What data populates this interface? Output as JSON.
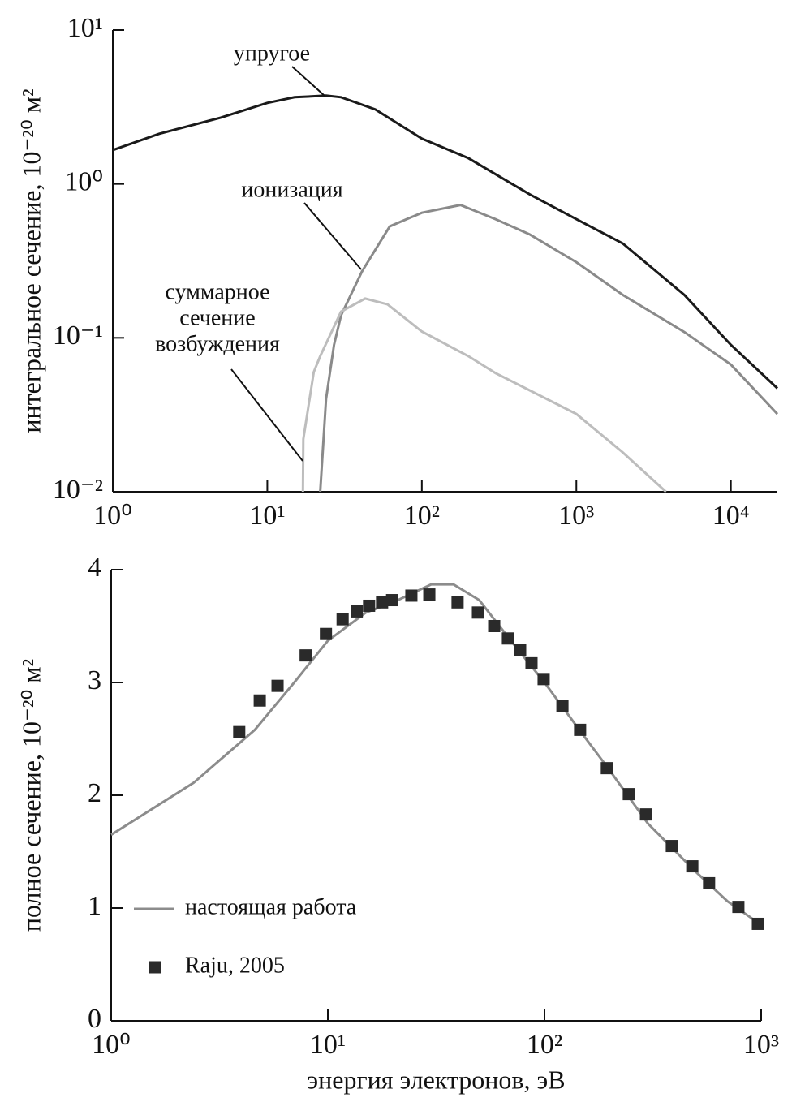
{
  "chart_data": [
    {
      "type": "line",
      "xlog": true,
      "ylog": true,
      "ylabel": "интегральное сечение, 10⁻²⁰ м²",
      "xlim": [
        1,
        20000
      ],
      "ylim": [
        0.01,
        10
      ],
      "xticks": [
        {
          "value": 1,
          "label": "10⁰"
        },
        {
          "value": 10,
          "label": "10¹"
        },
        {
          "value": 100,
          "label": "10²"
        },
        {
          "value": 1000,
          "label": "10³"
        },
        {
          "value": 10000,
          "label": "10⁴"
        }
      ],
      "yticks": [
        {
          "value": 0.01,
          "label": "10⁻²"
        },
        {
          "value": 0.1,
          "label": "10⁻¹"
        },
        {
          "value": 1,
          "label": "10⁰"
        },
        {
          "value": 10,
          "label": "10¹"
        }
      ],
      "annotations": [
        [
          "упругое"
        ],
        [
          "ионизация"
        ],
        [
          "суммарное",
          "сечение",
          "возбуждения"
        ]
      ],
      "series": [
        {
          "color": "#1a1a1a",
          "style": "line",
          "x": [
            1,
            2,
            5,
            10,
            15,
            24,
            30,
            50,
            100,
            200,
            500,
            1000,
            2000,
            5000,
            10000,
            20000
          ],
          "values": [
            1.66,
            2.12,
            2.7,
            3.36,
            3.66,
            3.75,
            3.66,
            3.05,
            1.97,
            1.47,
            0.855,
            0.59,
            0.41,
            0.19,
            0.09,
            0.047
          ]
        },
        {
          "color": "#8a8a8a",
          "style": "line",
          "x": [
            22,
            24,
            27,
            30,
            41,
            62,
            100,
            178,
            300,
            500,
            1000,
            2000,
            5000,
            10000,
            20000
          ],
          "values": [
            0.01,
            0.04,
            0.09,
            0.14,
            0.27,
            0.53,
            0.65,
            0.73,
            0.59,
            0.47,
            0.31,
            0.19,
            0.109,
            0.067,
            0.032
          ]
        },
        {
          "color": "#bdbdbd",
          "style": "line",
          "x": [
            17,
            17.1,
            20,
            22,
            30,
            43,
            60,
            100,
            200,
            300,
            1000,
            2000,
            3800
          ],
          "values": [
            0.01,
            0.022,
            0.06,
            0.076,
            0.148,
            0.18,
            0.165,
            0.11,
            0.076,
            0.059,
            0.032,
            0.018,
            0.01
          ]
        }
      ]
    },
    {
      "type": "line",
      "xlog": true,
      "ylog": false,
      "ylabel": "полное сечение, 10⁻²⁰ м²",
      "xlabel": "энергия электронов, эВ",
      "xlim": [
        1,
        1000
      ],
      "ylim": [
        0,
        4
      ],
      "xticks": [
        {
          "value": 1,
          "label": "10⁰"
        },
        {
          "value": 10,
          "label": "10¹"
        },
        {
          "value": 100,
          "label": "10²"
        },
        {
          "value": 1000,
          "label": "10³"
        }
      ],
      "yticks": [
        0,
        1,
        2,
        3,
        4
      ],
      "legend": "lower left",
      "series": [
        {
          "name": "настоящая работа",
          "color": "#8c8c8c",
          "style": "line",
          "x": [
            1,
            2.4,
            4.6,
            7,
            10,
            15,
            20,
            30,
            38,
            50,
            70,
            100,
            150,
            200,
            300,
            500,
            700,
            1000
          ],
          "values": [
            1.65,
            2.11,
            2.58,
            3.0,
            3.37,
            3.62,
            3.71,
            3.87,
            3.87,
            3.73,
            3.37,
            3.0,
            2.54,
            2.22,
            1.75,
            1.32,
            1.06,
            0.85
          ]
        },
        {
          "name": "Raju, 2005",
          "color": "#2a2a2a",
          "style": "square",
          "x": [
            3.9,
            4.85,
            5.86,
            7.9,
            9.8,
            11.7,
            13.6,
            15.5,
            17.8,
            19.8,
            24.3,
            29.4,
            39.7,
            49.3,
            58.6,
            67.8,
            77.2,
            87.1,
            99.1,
            121,
            146,
            194,
            245,
            294,
            387,
            481,
            575,
            785,
            966
          ],
          "values": [
            2.56,
            2.84,
            2.97,
            3.24,
            3.43,
            3.56,
            3.63,
            3.68,
            3.71,
            3.73,
            3.77,
            3.78,
            3.71,
            3.62,
            3.5,
            3.39,
            3.29,
            3.17,
            3.03,
            2.79,
            2.58,
            2.24,
            2.01,
            1.83,
            1.55,
            1.37,
            1.22,
            1.01,
            0.86
          ]
        }
      ]
    }
  ]
}
